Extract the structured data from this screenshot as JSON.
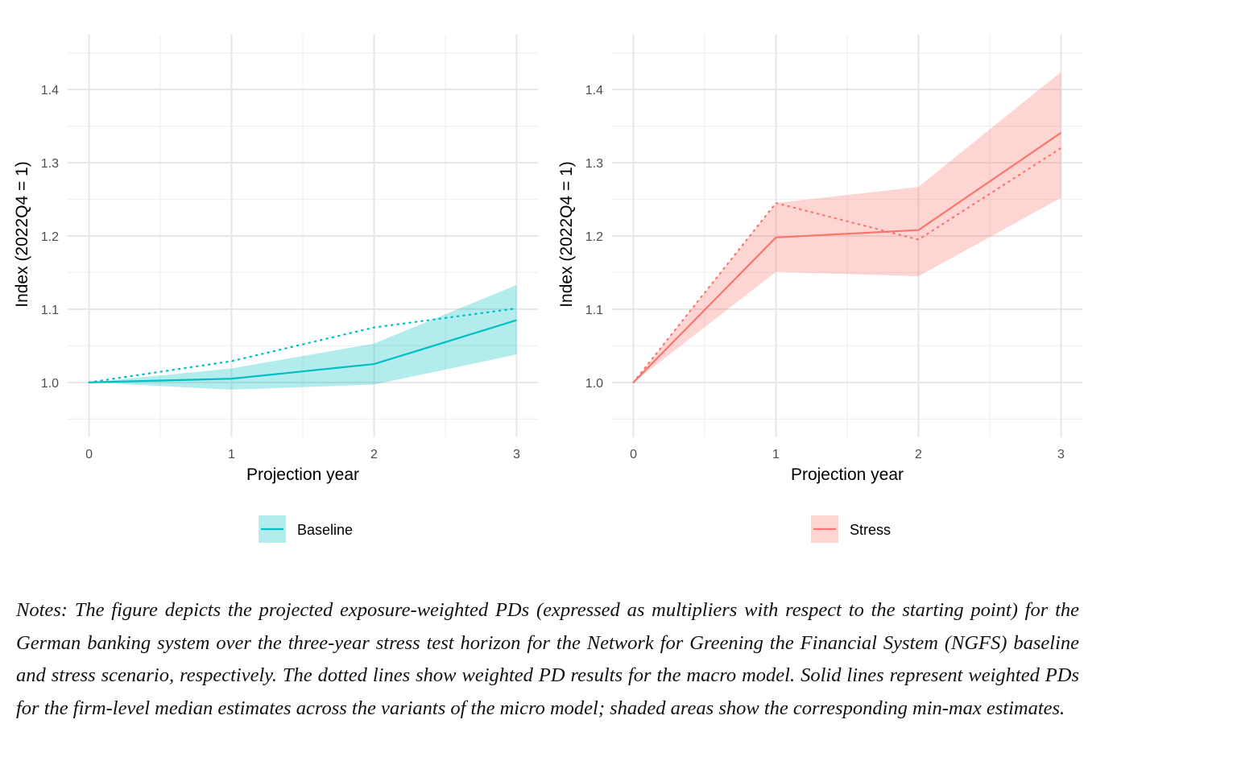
{
  "chart_data": [
    {
      "type": "line",
      "xlabel": "Projection year",
      "ylabel": "Index (2022Q4 = 1)",
      "x": [
        0,
        1,
        2,
        3
      ],
      "xticks": [
        "0",
        "1",
        "2",
        "3"
      ],
      "yticks": [
        "1.0",
        "1.1",
        "1.2",
        "1.3",
        "1.4"
      ],
      "xlim": [
        -0.15,
        3.15
      ],
      "ylim": [
        0.925,
        1.475
      ],
      "grid": true,
      "legend_position": "bottom",
      "color": "#00BFC4",
      "series": [
        {
          "name": "Baseline",
          "style": "solid",
          "values": [
            1.0,
            1.005,
            1.025,
            1.085
          ]
        },
        {
          "style": "dotted",
          "values": [
            1.0,
            1.029,
            1.075,
            1.101
          ]
        },
        {
          "style": "ribbon",
          "min": [
            1.0,
            0.99,
            0.997,
            1.038
          ],
          "max": [
            1.0,
            1.019,
            1.053,
            1.133
          ]
        }
      ]
    },
    {
      "type": "line",
      "xlabel": "Projection year",
      "ylabel": "Index (2022Q4 = 1)",
      "x": [
        0,
        1,
        2,
        3
      ],
      "xticks": [
        "0",
        "1",
        "2",
        "3"
      ],
      "yticks": [
        "1.0",
        "1.1",
        "1.2",
        "1.3",
        "1.4"
      ],
      "xlim": [
        -0.15,
        3.15
      ],
      "ylim": [
        0.925,
        1.475
      ],
      "grid": true,
      "legend_position": "bottom",
      "color": "#F8766D",
      "series": [
        {
          "name": "Stress",
          "style": "solid",
          "values": [
            1.0,
            1.198,
            1.208,
            1.341
          ]
        },
        {
          "style": "dotted",
          "values": [
            1.0,
            1.245,
            1.195,
            1.32
          ]
        },
        {
          "style": "ribbon",
          "min": [
            1.0,
            1.151,
            1.145,
            1.252
          ],
          "max": [
            1.0,
            1.245,
            1.267,
            1.424
          ]
        }
      ]
    }
  ],
  "notes": "Notes: The figure depicts the projected exposure-weighted PDs (expressed as multipliers with respect to the starting point) for the German banking system over the three-year stress test horizon for the Network for Greening the Financial System (NGFS) baseline and stress scenario, respectively. The dotted lines show weighted PD results for the macro model. Solid lines represent weighted PDs for the firm-level median estimates across the variants of the micro model; shaded areas show the corresponding min-max estimates."
}
